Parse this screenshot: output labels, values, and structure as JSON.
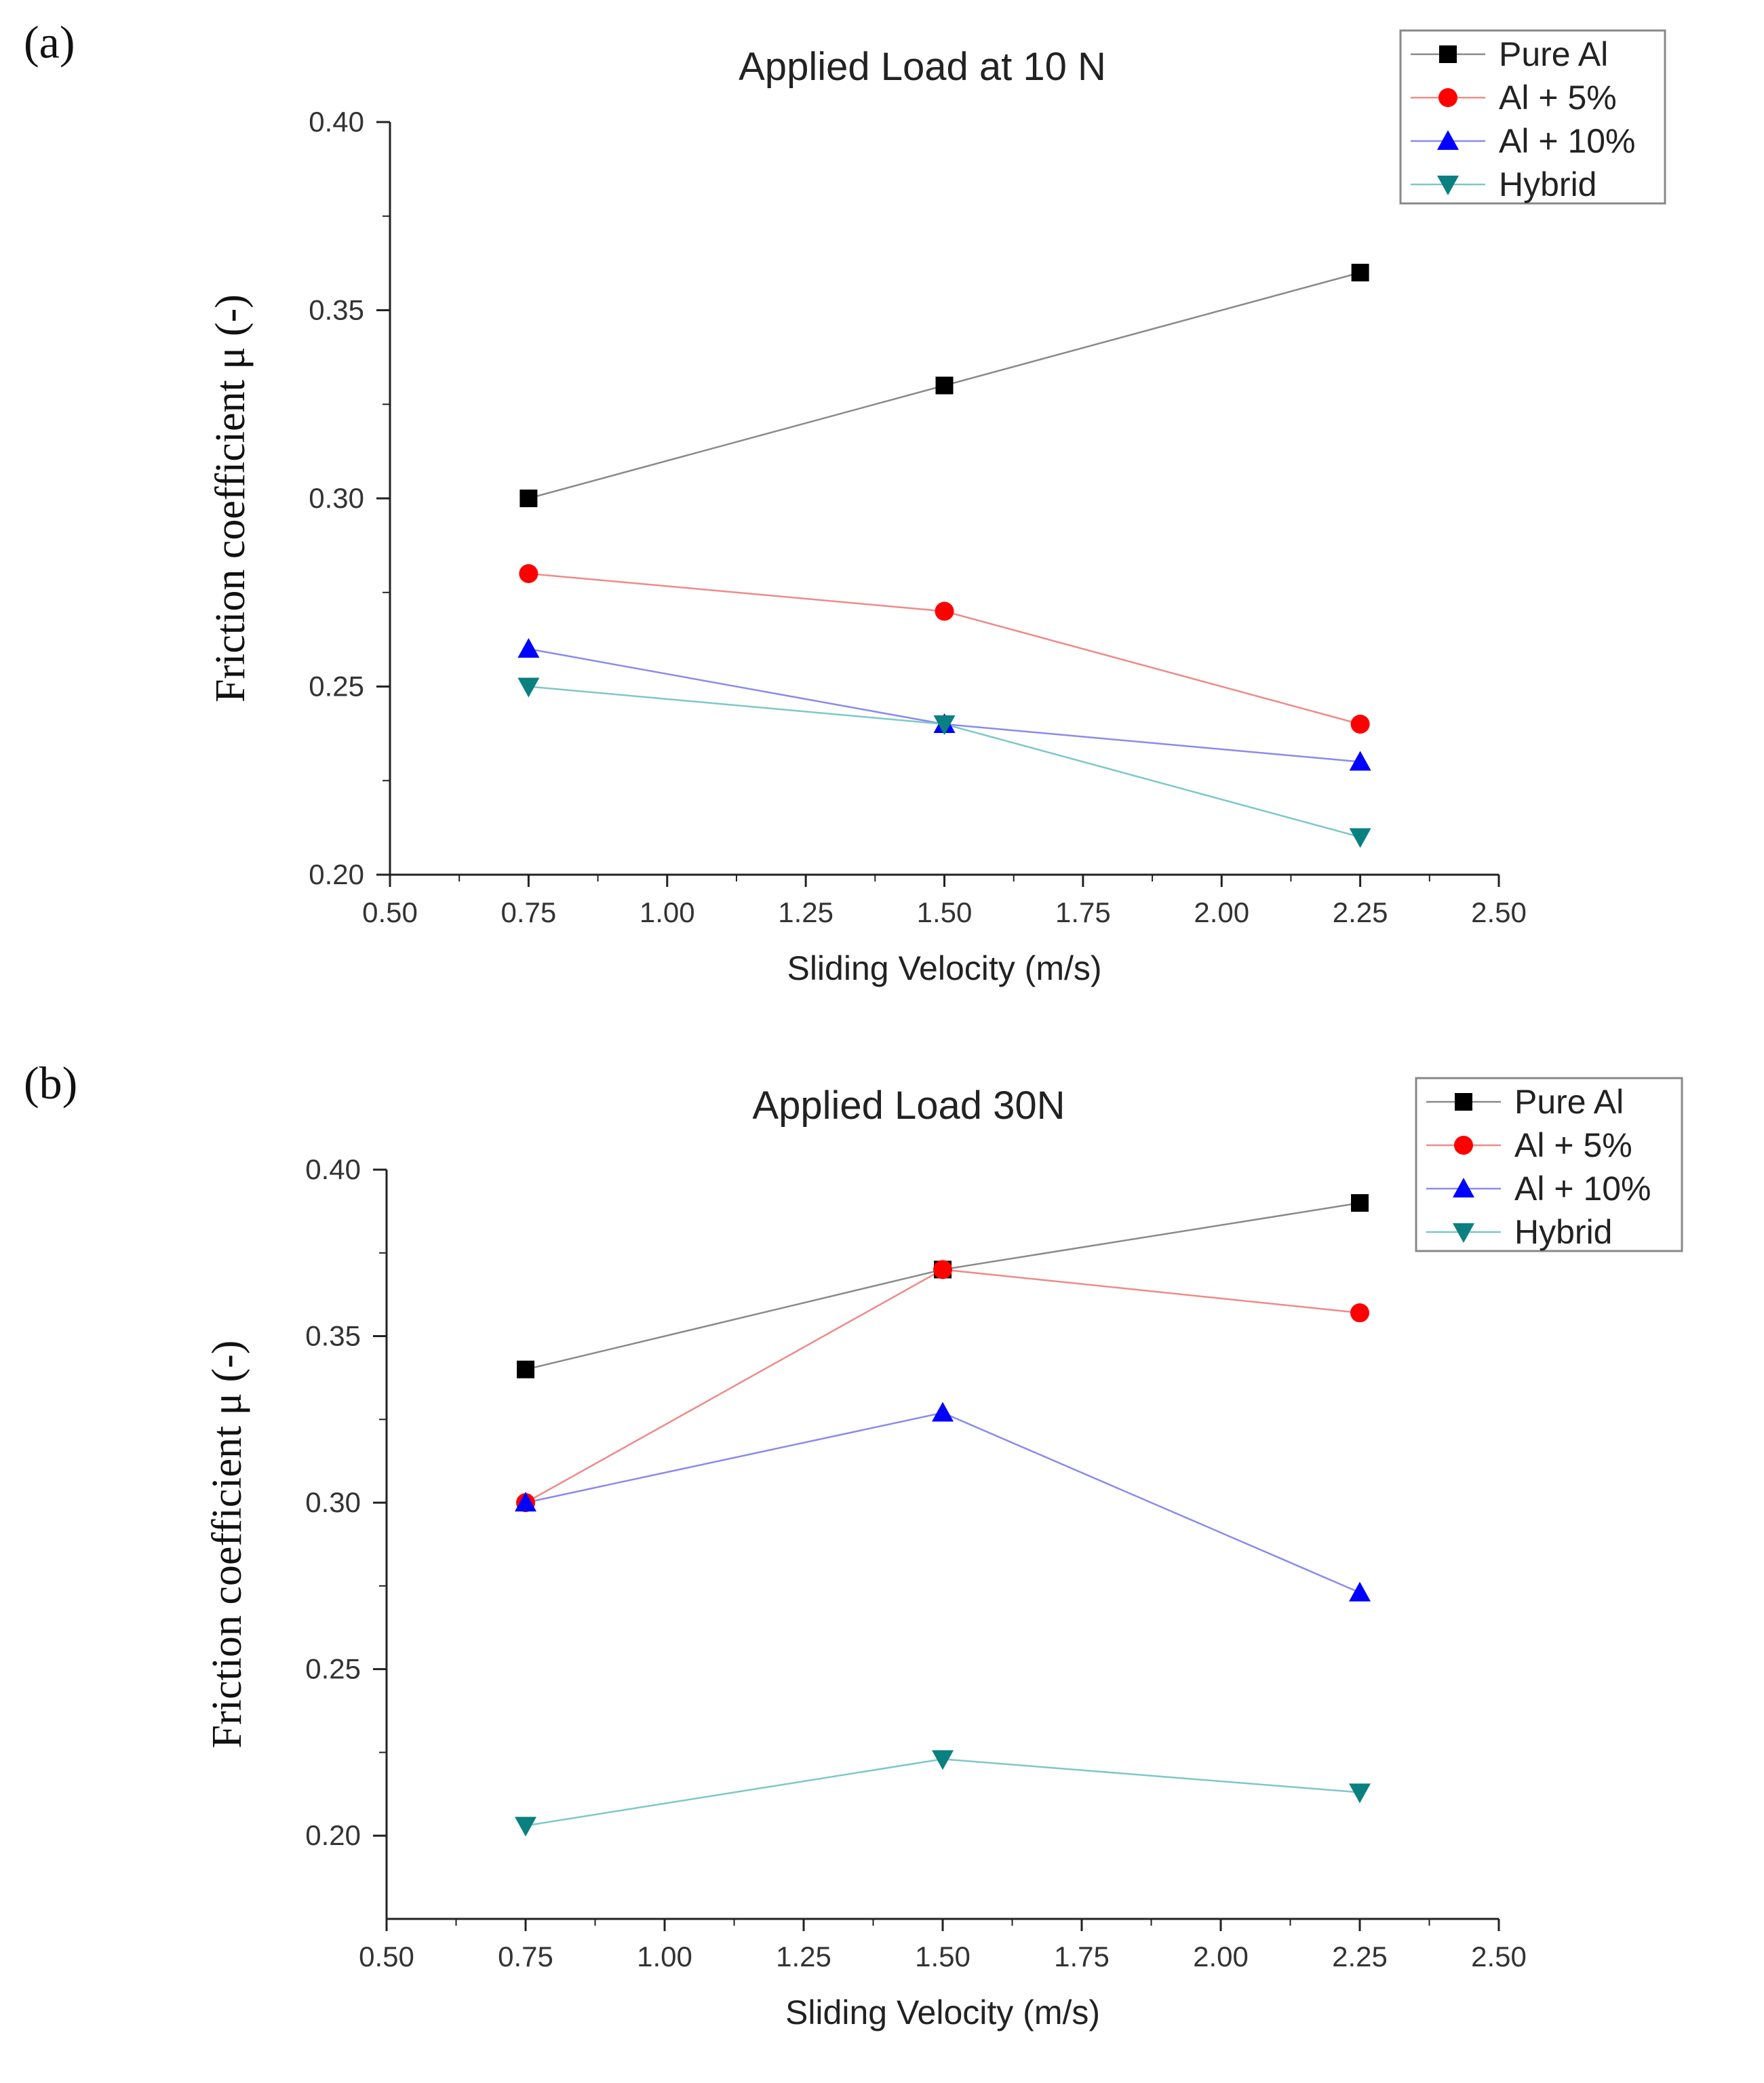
{
  "chart_data": [
    {
      "type": "line",
      "panel_label": "(a)",
      "title": "Applied Load at 10 N",
      "xlabel": "Sliding Velocity (m/s)",
      "ylabel": "Friction coefficient μ (-)",
      "x": [
        0.75,
        1.5,
        2.25
      ],
      "xlim": [
        0.5,
        2.5
      ],
      "ylim": [
        0.2,
        0.4
      ],
      "xticks": [
        "0.50",
        "0.75",
        "1.00",
        "1.25",
        "1.50",
        "1.75",
        "2.00",
        "2.25",
        "2.50"
      ],
      "yticks": [
        "0.20",
        "0.25",
        "0.30",
        "0.35",
        "0.40"
      ],
      "legend_position": "top-right",
      "series": [
        {
          "name": "Pure Al",
          "values": [
            0.3,
            0.33,
            0.36
          ],
          "color": "#000000",
          "line_color": "#8a8a8a",
          "marker": "square"
        },
        {
          "name": "Al + 5%",
          "values": [
            0.28,
            0.27,
            0.24
          ],
          "color": "#ff0000",
          "line_color": "#f08a8a",
          "marker": "circle"
        },
        {
          "name": "Al + 10%",
          "values": [
            0.26,
            0.24,
            0.23
          ],
          "color": "#0000ff",
          "line_color": "#8a8af0",
          "marker": "triangle-up"
        },
        {
          "name": "Hybrid",
          "values": [
            0.25,
            0.24,
            0.21
          ],
          "color": "#0a8080",
          "line_color": "#7ec8c8",
          "marker": "triangle-down"
        }
      ]
    },
    {
      "type": "line",
      "panel_label": "(b)",
      "title": "Applied Load 30N",
      "xlabel": "Sliding Velocity (m/s)",
      "ylabel": "Friction coefficient μ (-)",
      "x": [
        0.75,
        1.5,
        2.25
      ],
      "xlim": [
        0.5,
        2.5
      ],
      "ylim": [
        0.175,
        0.4
      ],
      "xticks": [
        "0.50",
        "0.75",
        "1.00",
        "1.25",
        "1.50",
        "1.75",
        "2.00",
        "2.25",
        "2.50"
      ],
      "yticks": [
        "0.20",
        "0.25",
        "0.30",
        "0.35",
        "0.40"
      ],
      "legend_position": "top-right",
      "series": [
        {
          "name": "Pure Al",
          "values": [
            0.34,
            0.37,
            0.39
          ],
          "color": "#000000",
          "line_color": "#8a8a8a",
          "marker": "square"
        },
        {
          "name": "Al + 5%",
          "values": [
            0.3,
            0.37,
            0.357
          ],
          "color": "#ff0000",
          "line_color": "#f08a8a",
          "marker": "circle"
        },
        {
          "name": "Al + 10%",
          "values": [
            0.3,
            0.327,
            0.273
          ],
          "color": "#0000ff",
          "line_color": "#8a8af0",
          "marker": "triangle-up"
        },
        {
          "name": "Hybrid",
          "values": [
            0.203,
            0.223,
            0.213
          ],
          "color": "#0a8080",
          "line_color": "#7ec8c8",
          "marker": "triangle-down"
        }
      ]
    }
  ]
}
